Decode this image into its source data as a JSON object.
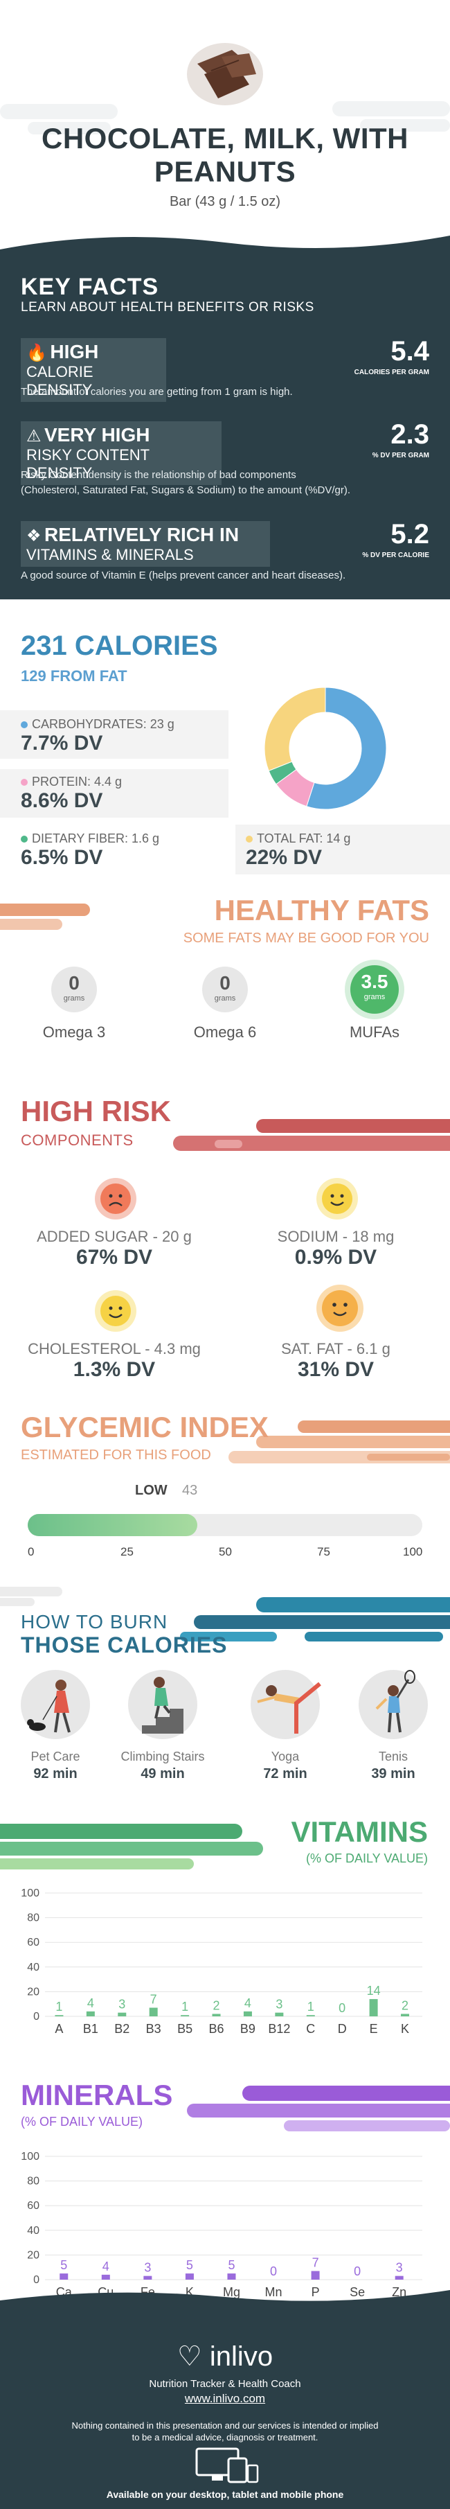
{
  "header": {
    "title_line1": "CHOCOLATE, MILK, WITH",
    "title_line2": "PEANUTS",
    "serving": "Bar (43 g / 1.5 oz)"
  },
  "key_facts": {
    "title": "KEY FACTS",
    "subtitle": "LEARN ABOUT HEALTH BENEFITS OR RISKS",
    "facts": [
      {
        "level": "HIGH",
        "label": "CALORIE DENSITY",
        "value": "5.4",
        "unit": "CALORIES PER GRAM",
        "desc": "The amount of calories you are getting from 1 gram is high.",
        "icon": "flame-icon"
      },
      {
        "level": "VERY HIGH",
        "label": "RISKY CONTENT DENSITY",
        "value": "2.3",
        "unit": "% DV PER GRAM",
        "desc1": "Risky Content density is the relationship of bad components",
        "desc2": "(Cholesterol, Saturated Fat, Sugars & Sodium) to the amount (%DV/gr).",
        "icon": "warning-icon"
      },
      {
        "level": "RELATIVELY RICH  IN",
        "label": "VITAMINS & MINERALS",
        "value": "5.2",
        "unit": "% DV PER CALORIE",
        "desc": "A good source of Vitamin E (helps prevent cancer and heart diseases).",
        "icon": "diamond-icon"
      }
    ]
  },
  "calories": {
    "title": "231 CALORIES",
    "from_fat": "129 FROM FAT",
    "carbs_label": "CARBOHYDRATES: 23 g",
    "carbs_dv": "7.7% DV",
    "protein_label": "PROTEIN: 4.4 g",
    "protein_dv": "8.6% DV",
    "fiber_label": "DIETARY FIBER: 1.6 g",
    "fiber_dv": "6.5% DV",
    "fat_label": "TOTAL FAT: 14 g",
    "fat_dv": "22% DV",
    "colors": {
      "carbs": "#5fa8dc",
      "protein": "#f5a3c7",
      "fiber": "#4fb88a",
      "fat": "#f7d57e"
    },
    "donut": [
      {
        "name": "carbs",
        "value": 55
      },
      {
        "name": "protein",
        "value": 10
      },
      {
        "name": "fiber",
        "value": 4
      },
      {
        "name": "fat",
        "value": 31
      }
    ]
  },
  "healthy_fats": {
    "title": "HEALTHY FATS",
    "subtitle": "SOME FATS MAY BE GOOD FOR YOU",
    "unit": "grams",
    "items": [
      {
        "name": "Omega 3",
        "value": "0"
      },
      {
        "name": "Omega 6",
        "value": "0"
      },
      {
        "name": "MUFAs",
        "value": "3.5"
      }
    ]
  },
  "high_risk": {
    "title": "HIGH RISK",
    "subtitle": "COMPONENTS",
    "items": [
      {
        "label": "ADDED SUGAR - 20 g",
        "dv": "67% DV",
        "face": "sad-face-icon",
        "color": "#f07a5a"
      },
      {
        "label": "SODIUM - 18 mg",
        "dv": "0.9% DV",
        "face": "happy-face-icon",
        "color": "#f6d245"
      },
      {
        "label": "CHOLESTEROL - 4.3 mg",
        "dv": "1.3% DV",
        "face": "happy-face-icon",
        "color": "#f6d245"
      },
      {
        "label": "SAT. FAT - 6.1 g",
        "dv": "31% DV",
        "face": "happy-face-icon",
        "color": "#f5b04a"
      }
    ]
  },
  "glycemic": {
    "title": "GLYCEMIC INDEX",
    "subtitle": "ESTIMATED FOR THIS FOOD",
    "level": "LOW",
    "value": "43",
    "value_num": 43,
    "ticks": [
      "0",
      "25",
      "50",
      "75",
      "100"
    ]
  },
  "burn": {
    "title1": "HOW TO BURN",
    "title2": "THOSE CALORIES",
    "activities": [
      {
        "name": "Pet Care",
        "min": "92 min",
        "icon": "dog-walking-icon"
      },
      {
        "name": "Climbing Stairs",
        "min": "49 min",
        "icon": "stairs-icon"
      },
      {
        "name": "Yoga",
        "min": "72 min",
        "icon": "yoga-icon"
      },
      {
        "name": "Tenis",
        "min": "39 min",
        "icon": "tennis-icon"
      }
    ]
  },
  "chart_data": [
    {
      "type": "bar",
      "title": "VITAMINS",
      "subtitle": "(% OF DAILY VALUE)",
      "categories": [
        "A",
        "B1",
        "B2",
        "B3",
        "B5",
        "B6",
        "B9",
        "B12",
        "C",
        "D",
        "E",
        "K"
      ],
      "values": [
        1,
        4,
        3,
        7,
        1,
        2,
        4,
        3,
        1,
        0,
        14,
        2
      ],
      "labels": [
        "1",
        "4",
        "3",
        "7",
        "1",
        "2",
        "4",
        "3",
        "1",
        "0",
        "14",
        "2"
      ],
      "ylim": [
        0,
        100
      ],
      "yticks": [
        "100",
        "80",
        "60",
        "40",
        "20",
        "0"
      ],
      "color": "#6cc08a"
    },
    {
      "type": "bar",
      "title": "MINERALS",
      "subtitle": "(% OF DAILY VALUE)",
      "categories": [
        "Ca",
        "Cu",
        "Fe",
        "K",
        "Mg",
        "Mn",
        "P",
        "Se",
        "Zn"
      ],
      "values": [
        5,
        4,
        3,
        5,
        5,
        0,
        7,
        0,
        3
      ],
      "labels": [
        "5",
        "4",
        "3",
        "5",
        "5",
        "0",
        "7",
        "0",
        "3"
      ],
      "ylim": [
        0,
        100
      ],
      "yticks": [
        "100",
        "80",
        "60",
        "40",
        "20",
        "0"
      ],
      "color": "#9a6bdc"
    }
  ],
  "footer": {
    "logo": "inlivo",
    "tagline": "Nutrition Tracker & Health Coach",
    "url": "www.inlivo.com",
    "disclaimer": "Nothing contained in this presentation and our services is intended or implied to be a medical advice, diagnosis or treatment.",
    "available": "Available on your desktop, tablet and mobile phone"
  }
}
